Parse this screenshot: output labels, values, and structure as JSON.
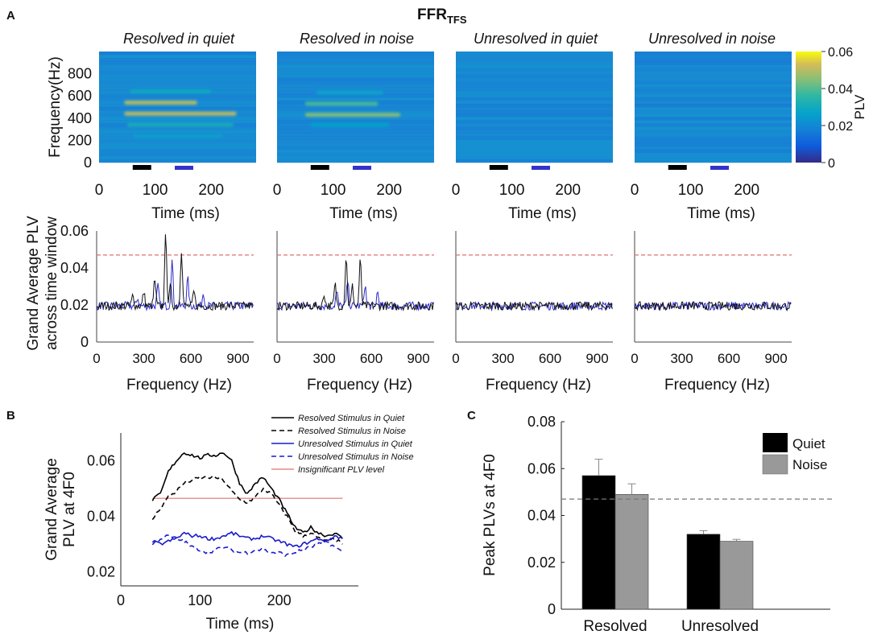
{
  "main_title": "FFR",
  "main_title_sub": "TFS",
  "panel_labels": {
    "a": "A",
    "b": "B",
    "c": "C"
  },
  "panel_a": {
    "conditions": [
      "Resolved in quiet",
      "Resolved in noise",
      "Unresolved in quiet",
      "Unresolved in noise"
    ],
    "spectrogram": {
      "ylabel": "Frequency(Hz)",
      "yticks": [
        "0",
        "200",
        "400",
        "600",
        "800"
      ],
      "xlabel": "Time (ms)",
      "xticks": [
        "0",
        "100",
        "200"
      ],
      "xrange": [
        0,
        280
      ],
      "yrange": [
        0,
        1000
      ],
      "windows_ms": [
        [
          60,
          93
        ],
        [
          135,
          168
        ]
      ],
      "bands": [
        [
          {
            "f": 440,
            "t0": 45,
            "t1": 245,
            "i": 0.55
          },
          {
            "f": 540,
            "t0": 45,
            "t1": 175,
            "i": 0.55
          },
          {
            "f": 340,
            "t0": 50,
            "t1": 240,
            "i": 0.22
          },
          {
            "f": 640,
            "t0": 55,
            "t1": 200,
            "i": 0.18
          },
          {
            "f": 240,
            "t0": 60,
            "t1": 220,
            "i": 0.12
          }
        ],
        [
          {
            "f": 430,
            "t0": 50,
            "t1": 220,
            "i": 0.45
          },
          {
            "f": 530,
            "t0": 50,
            "t1": 180,
            "i": 0.35
          },
          {
            "f": 340,
            "t0": 60,
            "t1": 200,
            "i": 0.15
          },
          {
            "f": 630,
            "t0": 70,
            "t1": 190,
            "i": 0.14
          }
        ],
        [],
        []
      ]
    },
    "colorbar": {
      "ticks": [
        "0",
        "0.02",
        "0.04",
        "0.06"
      ],
      "label": "PLV"
    },
    "spectrum": {
      "ylabel_line1": "Grand Average PLV",
      "ylabel_line2": "across time window",
      "yticks": [
        "0",
        "0.02",
        "0.04",
        "0.06"
      ],
      "xticks": [
        "0",
        "300",
        "600",
        "900"
      ],
      "xlabel": "Frequency (Hz)",
      "xrange": [
        0,
        1000
      ],
      "yrange": [
        0,
        0.06
      ],
      "threshold": 0.047,
      "peaks": [
        {
          "black": [
            [
              440,
              0.058
            ],
            [
              540,
              0.05
            ],
            [
              370,
              0.034
            ],
            [
              470,
              0.03
            ],
            [
              300,
              0.027
            ],
            [
              620,
              0.027
            ],
            [
              230,
              0.025
            ]
          ],
          "blue": [
            [
              480,
              0.044
            ],
            [
              580,
              0.034
            ],
            [
              390,
              0.03
            ],
            [
              680,
              0.027
            ],
            [
              260,
              0.024
            ]
          ]
        },
        {
          "black": [
            [
              440,
              0.046
            ],
            [
              530,
              0.044
            ],
            [
              370,
              0.031
            ],
            [
              480,
              0.03
            ],
            [
              300,
              0.026
            ]
          ],
          "blue": [
            [
              450,
              0.033
            ],
            [
              560,
              0.031
            ],
            [
              640,
              0.027
            ],
            [
              380,
              0.027
            ]
          ]
        },
        {
          "black": [],
          "blue": []
        },
        {
          "black": [],
          "blue": []
        }
      ]
    }
  },
  "panel_b": {
    "ylabel_line1": "Grand Average",
    "ylabel_line2": "PLV at 4F0",
    "xlabel": "Time (ms)",
    "xticks": [
      "0",
      "100",
      "200"
    ],
    "yticks": [
      "0.02",
      "0.04",
      "0.06"
    ],
    "xrange": [
      0,
      300
    ],
    "yrange": [
      0.015,
      0.07
    ],
    "legend": [
      "Resolved Stimulus in Quiet",
      "Resolved Stimulus in Noise",
      "Unresolved Stimulus in Quiet",
      "Unresolved Stimulus in Noise",
      "Insignificant PLV level"
    ],
    "threshold": 0.0465,
    "series": [
      {
        "name": "Resolved Stimulus in Quiet",
        "color": "#000000",
        "dash": "",
        "points": [
          [
            40,
            0.046
          ],
          [
            50,
            0.048
          ],
          [
            60,
            0.056
          ],
          [
            70,
            0.06
          ],
          [
            80,
            0.063
          ],
          [
            90,
            0.062
          ],
          [
            100,
            0.061
          ],
          [
            110,
            0.062
          ],
          [
            120,
            0.062
          ],
          [
            130,
            0.063
          ],
          [
            140,
            0.06
          ],
          [
            150,
            0.052
          ],
          [
            160,
            0.048
          ],
          [
            170,
            0.052
          ],
          [
            180,
            0.054
          ],
          [
            190,
            0.05
          ],
          [
            200,
            0.046
          ],
          [
            210,
            0.041
          ],
          [
            220,
            0.036
          ],
          [
            230,
            0.034
          ],
          [
            240,
            0.036
          ],
          [
            250,
            0.034
          ],
          [
            260,
            0.033
          ],
          [
            270,
            0.034
          ],
          [
            280,
            0.032
          ]
        ]
      },
      {
        "name": "Resolved Stimulus in Noise",
        "color": "#000000",
        "dash": "6,4",
        "points": [
          [
            40,
            0.039
          ],
          [
            50,
            0.043
          ],
          [
            60,
            0.047
          ],
          [
            70,
            0.049
          ],
          [
            80,
            0.052
          ],
          [
            90,
            0.053
          ],
          [
            100,
            0.054
          ],
          [
            110,
            0.054
          ],
          [
            120,
            0.054
          ],
          [
            130,
            0.053
          ],
          [
            140,
            0.049
          ],
          [
            150,
            0.046
          ],
          [
            160,
            0.045
          ],
          [
            170,
            0.047
          ],
          [
            180,
            0.05
          ],
          [
            190,
            0.048
          ],
          [
            200,
            0.044
          ],
          [
            210,
            0.04
          ],
          [
            220,
            0.035
          ],
          [
            230,
            0.033
          ],
          [
            240,
            0.034
          ],
          [
            250,
            0.032
          ],
          [
            260,
            0.031
          ],
          [
            270,
            0.032
          ],
          [
            280,
            0.03
          ]
        ]
      },
      {
        "name": "Unresolved Stimulus in Quiet",
        "color": "#1a1acc",
        "dash": "",
        "points": [
          [
            40,
            0.031
          ],
          [
            50,
            0.03
          ],
          [
            60,
            0.031
          ],
          [
            70,
            0.032
          ],
          [
            80,
            0.034
          ],
          [
            90,
            0.033
          ],
          [
            100,
            0.033
          ],
          [
            110,
            0.032
          ],
          [
            120,
            0.032
          ],
          [
            130,
            0.033
          ],
          [
            140,
            0.034
          ],
          [
            150,
            0.033
          ],
          [
            160,
            0.032
          ],
          [
            170,
            0.032
          ],
          [
            180,
            0.033
          ],
          [
            190,
            0.032
          ],
          [
            200,
            0.031
          ],
          [
            210,
            0.03
          ],
          [
            220,
            0.029
          ],
          [
            230,
            0.03
          ],
          [
            240,
            0.031
          ],
          [
            250,
            0.032
          ],
          [
            260,
            0.031
          ],
          [
            270,
            0.033
          ],
          [
            280,
            0.032
          ]
        ]
      },
      {
        "name": "Unresolved Stimulus in Noise",
        "color": "#1a1acc",
        "dash": "6,4",
        "points": [
          [
            40,
            0.03
          ],
          [
            50,
            0.032
          ],
          [
            60,
            0.033
          ],
          [
            70,
            0.032
          ],
          [
            80,
            0.031
          ],
          [
            90,
            0.029
          ],
          [
            100,
            0.028
          ],
          [
            110,
            0.027
          ],
          [
            120,
            0.028
          ],
          [
            130,
            0.029
          ],
          [
            140,
            0.028
          ],
          [
            150,
            0.027
          ],
          [
            160,
            0.027
          ],
          [
            170,
            0.028
          ],
          [
            180,
            0.028
          ],
          [
            190,
            0.027
          ],
          [
            200,
            0.027
          ],
          [
            210,
            0.026
          ],
          [
            220,
            0.027
          ],
          [
            230,
            0.028
          ],
          [
            240,
            0.029
          ],
          [
            250,
            0.03
          ],
          [
            260,
            0.031
          ],
          [
            270,
            0.029
          ],
          [
            280,
            0.027
          ]
        ]
      }
    ]
  },
  "panel_c": {
    "ylabel": "Peak PLVs at 4F0",
    "yticks": [
      "0",
      "0.02",
      "0.04",
      "0.06",
      "0.08"
    ],
    "yrange": [
      0,
      0.08
    ],
    "categories": [
      "Resolved",
      "Unresolved"
    ],
    "legend": [
      "Quiet",
      "Noise"
    ],
    "threshold": 0.047
  },
  "chart_data": [
    {
      "type": "bar",
      "title": "Peak PLVs at 4F0",
      "ylabel": "Peak PLVs at 4F0",
      "categories": [
        "Resolved",
        "Unresolved"
      ],
      "series": [
        {
          "name": "Quiet",
          "color": "#000000",
          "values": [
            0.057,
            0.032
          ],
          "errors": [
            0.007,
            0.0015
          ]
        },
        {
          "name": "Noise",
          "color": "#999999",
          "values": [
            0.049,
            0.029
          ],
          "errors": [
            0.0045,
            0.0008
          ]
        }
      ],
      "ylim": [
        0,
        0.08
      ],
      "reference_line": 0.047
    },
    {
      "type": "line",
      "title": "Grand Average PLV at 4F0",
      "xlabel": "Time (ms)",
      "ylabel": "Grand Average PLV at 4F0",
      "series_ref": "panel_b.series",
      "xlim": [
        0,
        300
      ],
      "ylim": [
        0.015,
        0.07
      ]
    }
  ]
}
